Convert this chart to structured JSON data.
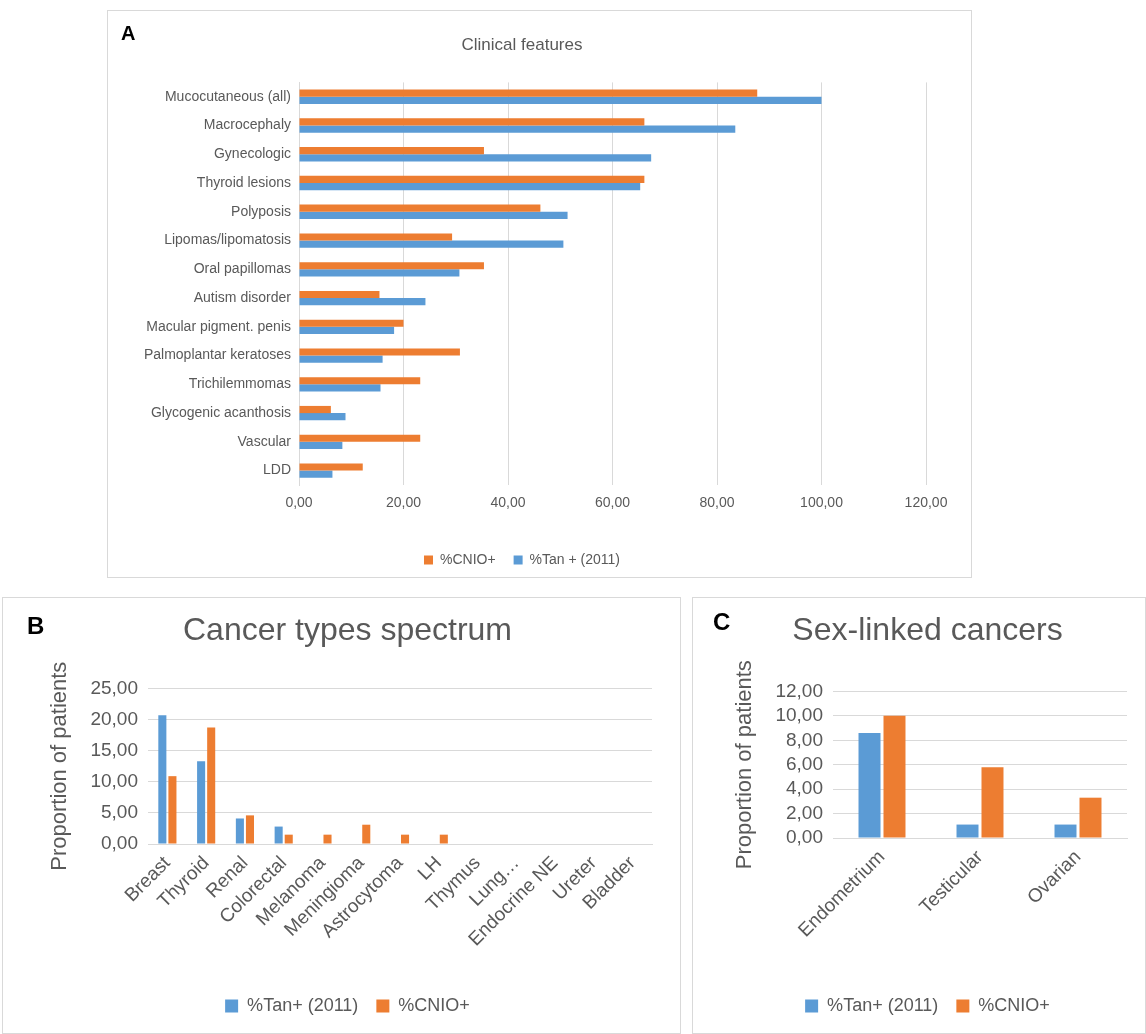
{
  "chart_data": [
    {
      "type": "bar",
      "title": "Clinical features",
      "orientation": "horizontal",
      "annotations": [
        "A"
      ],
      "categories": [
        "Mucocutaneous (all)",
        "Macrocephaly",
        "Gynecologic",
        "Thyroid lesions",
        "Polyposis",
        "Lipomas/lipomatosis",
        "Oral papillomas",
        "Autism disorder",
        "Macular pigment. penis",
        "Palmoplantar keratoses",
        "Trichilemmomas",
        "Glycogenic acanthosis",
        "Vascular",
        "LDD"
      ],
      "series": [
        {
          "name": "%CNIO+",
          "color": "#ed7d31",
          "values": [
            87.7,
            66.1,
            35.4,
            66.1,
            46.2,
            29.3,
            35.4,
            15.4,
            20.0,
            30.8,
            23.2,
            6.1,
            23.2,
            12.2
          ]
        },
        {
          "name": "%Tan + (2011)",
          "color": "#5b9bd5",
          "values": [
            100,
            83.5,
            67.4,
            65.3,
            51.4,
            50.6,
            30.7,
            24.2,
            18.2,
            16.0,
            15.6,
            8.9,
            8.3,
            6.4
          ]
        }
      ],
      "xlim": [
        0,
        120
      ],
      "xticks": [
        {
          "value": 0,
          "label": "0,00"
        },
        {
          "value": 20,
          "label": "20,00"
        },
        {
          "value": 40,
          "label": "40,00"
        },
        {
          "value": 60,
          "label": "60,00"
        },
        {
          "value": 80,
          "label": "80,00"
        },
        {
          "value": 100,
          "label": "100,00"
        },
        {
          "value": 120,
          "label": "120,00"
        }
      ],
      "grid": "x",
      "legend": "bottom"
    },
    {
      "type": "bar",
      "title": "Cancer types spectrum",
      "ylabel": "Proportion of patients",
      "annotations": [
        "B"
      ],
      "categories": [
        "Breast",
        "Thyroid",
        "Renal",
        "Colorectal",
        "Melanoma",
        "Meningioma",
        "Astrocytoma",
        "LH",
        "Thymus",
        "Lung…",
        "Endocrine NE",
        "Ureter",
        "Bladder"
      ],
      "series": [
        {
          "name": "%Tan+ (2011)",
          "color": "#5b9bd5",
          "values": [
            20.7,
            13.3,
            4.1,
            2.8,
            0,
            0,
            0,
            0,
            0,
            0,
            0,
            0,
            0
          ]
        },
        {
          "name": "%CNIO+",
          "color": "#ed7d31",
          "values": [
            10.9,
            18.7,
            4.6,
            1.5,
            1.5,
            3.1,
            1.5,
            1.5,
            0,
            0,
            0,
            0,
            0
          ]
        }
      ],
      "ylim": [
        0,
        25
      ],
      "yticks": [
        {
          "value": 0,
          "label": "0,00"
        },
        {
          "value": 5,
          "label": "5,00"
        },
        {
          "value": 10,
          "label": "10,00"
        },
        {
          "value": 15,
          "label": "15,00"
        },
        {
          "value": 20,
          "label": "20,00"
        },
        {
          "value": 25,
          "label": "25,00"
        }
      ],
      "grid": "y",
      "legend": "bottom"
    },
    {
      "type": "bar",
      "title": "Sex-linked cancers",
      "ylabel": "Proportion of patients",
      "annotations": [
        "C"
      ],
      "categories": [
        "Endometrium",
        "Testicular",
        "Ovarian"
      ],
      "series": [
        {
          "name": "%Tan+ (2011)",
          "color": "#5b9bd5",
          "values": [
            8.6,
            1.1,
            1.1
          ]
        },
        {
          "name": "%CNIO+",
          "color": "#ed7d31",
          "values": [
            10,
            5.8,
            3.3
          ]
        }
      ],
      "ylim": [
        0,
        12
      ],
      "yticks": [
        {
          "value": 0,
          "label": "0,00"
        },
        {
          "value": 2,
          "label": "2,00"
        },
        {
          "value": 4,
          "label": "4,00"
        },
        {
          "value": 6,
          "label": "6,00"
        },
        {
          "value": 8,
          "label": "8,00"
        },
        {
          "value": 10,
          "label": "10,00"
        },
        {
          "value": 12,
          "label": "12,00"
        }
      ],
      "grid": "y",
      "legend": "bottom"
    }
  ]
}
